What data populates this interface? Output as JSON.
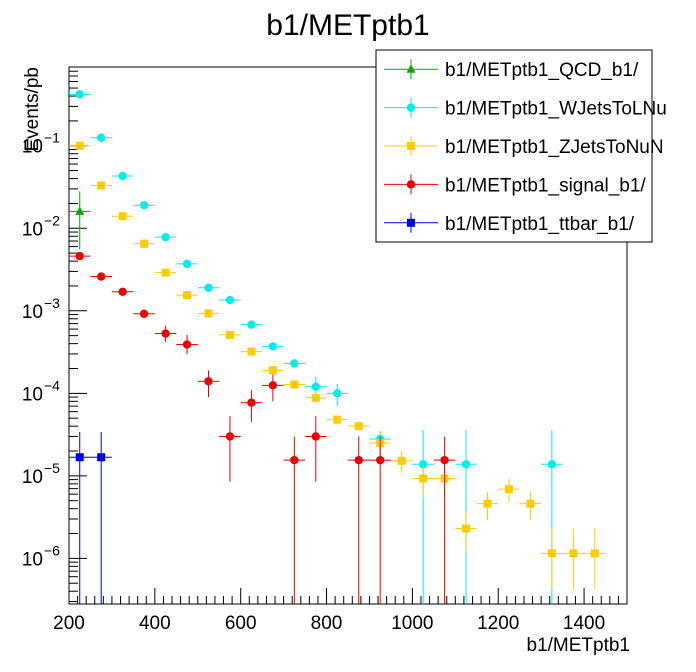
{
  "chart_data": {
    "type": "scatter",
    "title": "b1/METptb1",
    "xlabel": "b1/METptb1",
    "ylabel": "Events/pb",
    "xlim": [
      200,
      1500
    ],
    "ylog": true,
    "ylim": [
      2.8e-07,
      0.9
    ],
    "x_ticks": [
      200,
      400,
      600,
      800,
      1000,
      1200,
      1400
    ],
    "x_tick_labels": [
      "200",
      "400",
      "600",
      "800",
      "1000",
      "1200",
      "1400"
    ],
    "y_tick_labels": [
      {
        "base": "10",
        "exp": "−6",
        "value": 1e-06
      },
      {
        "base": "10",
        "exp": "−5",
        "value": 1e-05
      },
      {
        "base": "10",
        "exp": "−4",
        "value": 0.0001
      },
      {
        "base": "10",
        "exp": "−3",
        "value": 0.001
      },
      {
        "base": "10",
        "exp": "−2",
        "value": 0.01
      },
      {
        "base": "10",
        "exp": "−1",
        "value": 0.1
      }
    ],
    "bin_half_width": 25,
    "legend_position": "top-right",
    "series": [
      {
        "name": "b1/METptb1_QCD_b1/",
        "color": "#00aa00",
        "marker": "triangle",
        "points": [
          {
            "x": 225,
            "y": 0.016,
            "lo": 0.0055,
            "hi": 0.028
          }
        ]
      },
      {
        "name": "b1/METptb1_WJetsToLNu",
        "color": "#00eeee",
        "marker": "circle",
        "points": [
          {
            "x": 225,
            "y": 0.42
          },
          {
            "x": 275,
            "y": 0.125
          },
          {
            "x": 325,
            "y": 0.043
          },
          {
            "x": 375,
            "y": 0.019
          },
          {
            "x": 425,
            "y": 0.0078
          },
          {
            "x": 475,
            "y": 0.0037
          },
          {
            "x": 525,
            "y": 0.0019
          },
          {
            "x": 575,
            "y": 0.00135
          },
          {
            "x": 625,
            "y": 0.00068
          },
          {
            "x": 675,
            "y": 0.00037
          },
          {
            "x": 725,
            "y": 0.00023
          },
          {
            "x": 775,
            "y": 0.00012,
            "lo": 9e-05,
            "hi": 0.00016
          },
          {
            "x": 825,
            "y": 0.0001,
            "lo": 7e-05,
            "hi": 0.00013
          },
          {
            "x": 925,
            "y": 2.8e-05,
            "lo": 1.7e-05,
            "hi": 3.5e-05
          },
          {
            "x": 1025,
            "y": 1.38e-05,
            "lo": 2.8e-07,
            "hi": 3.6e-05
          },
          {
            "x": 1125,
            "y": 1.38e-05,
            "lo": 2.8e-07,
            "hi": 3.6e-05
          },
          {
            "x": 1325,
            "y": 1.38e-05,
            "lo": 2.8e-07,
            "hi": 3.6e-05
          }
        ]
      },
      {
        "name": "b1/METptb1_ZJetsToNuN",
        "color": "#ffcc00",
        "marker": "square",
        "points": [
          {
            "x": 225,
            "y": 0.1
          },
          {
            "x": 275,
            "y": 0.033
          },
          {
            "x": 325,
            "y": 0.014
          },
          {
            "x": 375,
            "y": 0.0065
          },
          {
            "x": 425,
            "y": 0.0029
          },
          {
            "x": 475,
            "y": 0.00155
          },
          {
            "x": 525,
            "y": 0.00093
          },
          {
            "x": 575,
            "y": 0.00051
          },
          {
            "x": 625,
            "y": 0.00032
          },
          {
            "x": 675,
            "y": 0.00019
          },
          {
            "x": 725,
            "y": 0.000128
          },
          {
            "x": 775,
            "y": 8.8e-05
          },
          {
            "x": 825,
            "y": 4.8e-05
          },
          {
            "x": 875,
            "y": 4e-05
          },
          {
            "x": 925,
            "y": 2.5e-05,
            "lo": 1.8e-05,
            "hi": 3.3e-05
          },
          {
            "x": 975,
            "y": 1.52e-05,
            "lo": 1.1e-05,
            "hi": 2e-05
          },
          {
            "x": 1025,
            "y": 9.3e-06,
            "lo": 5.5e-06,
            "hi": 1.35e-05
          },
          {
            "x": 1075,
            "y": 9.3e-06,
            "lo": 5.5e-06,
            "hi": 1.35e-05
          },
          {
            "x": 1125,
            "y": 2.3e-06,
            "lo": 1.2e-06,
            "hi": 3.7e-06
          },
          {
            "x": 1175,
            "y": 4.6e-06,
            "lo": 2.9e-06,
            "hi": 6.4e-06
          },
          {
            "x": 1225,
            "y": 6.9e-06,
            "lo": 4.8e-06,
            "hi": 9.2e-06
          },
          {
            "x": 1275,
            "y": 4.6e-06,
            "lo": 2.9e-06,
            "hi": 6.4e-06
          },
          {
            "x": 1325,
            "y": 1.15e-06,
            "lo": 4.2e-07,
            "hi": 2.3e-06
          },
          {
            "x": 1375,
            "y": 1.15e-06,
            "lo": 4.2e-07,
            "hi": 2.3e-06
          },
          {
            "x": 1425,
            "y": 1.15e-06,
            "lo": 4.2e-07,
            "hi": 2.3e-06
          }
        ]
      },
      {
        "name": "b1/METptb1_signal_b1/",
        "color": "#ee0000",
        "marker": "circle",
        "points": [
          {
            "x": 225,
            "y": 0.0046
          },
          {
            "x": 275,
            "y": 0.0026
          },
          {
            "x": 325,
            "y": 0.0017
          },
          {
            "x": 375,
            "y": 0.00092
          },
          {
            "x": 425,
            "y": 0.00053,
            "lo": 0.00042,
            "hi": 0.00066
          },
          {
            "x": 475,
            "y": 0.00039,
            "lo": 0.0003,
            "hi": 0.00051
          },
          {
            "x": 525,
            "y": 0.00014,
            "lo": 9e-05,
            "hi": 0.00019
          },
          {
            "x": 575,
            "y": 3e-05,
            "lo": 8.5e-06,
            "hi": 5.3e-05
          },
          {
            "x": 625,
            "y": 7.7e-05,
            "lo": 4.5e-05,
            "hi": 0.00011
          },
          {
            "x": 675,
            "y": 0.000125,
            "lo": 8e-05,
            "hi": 0.00017
          },
          {
            "x": 725,
            "y": 1.55e-05,
            "lo": 2.8e-07,
            "hi": 3e-05
          },
          {
            "x": 775,
            "y": 3e-05,
            "lo": 8.5e-06,
            "hi": 5.3e-05
          },
          {
            "x": 875,
            "y": 1.55e-05,
            "lo": 2.8e-07,
            "hi": 3e-05
          },
          {
            "x": 925,
            "y": 1.55e-05,
            "lo": 2.8e-07,
            "hi": 3e-05
          },
          {
            "x": 1075,
            "y": 1.55e-05,
            "lo": 2.8e-07,
            "hi": 3e-05
          }
        ]
      },
      {
        "name": "b1/METptb1_ttbar_b1/",
        "color": "#0000ee",
        "marker": "square",
        "points": [
          {
            "x": 225,
            "y": 1.68e-05,
            "lo": 2.8e-07,
            "hi": 3.4e-05
          },
          {
            "x": 275,
            "y": 1.68e-05,
            "lo": 2.8e-07,
            "hi": 3.4e-05
          }
        ]
      }
    ]
  }
}
